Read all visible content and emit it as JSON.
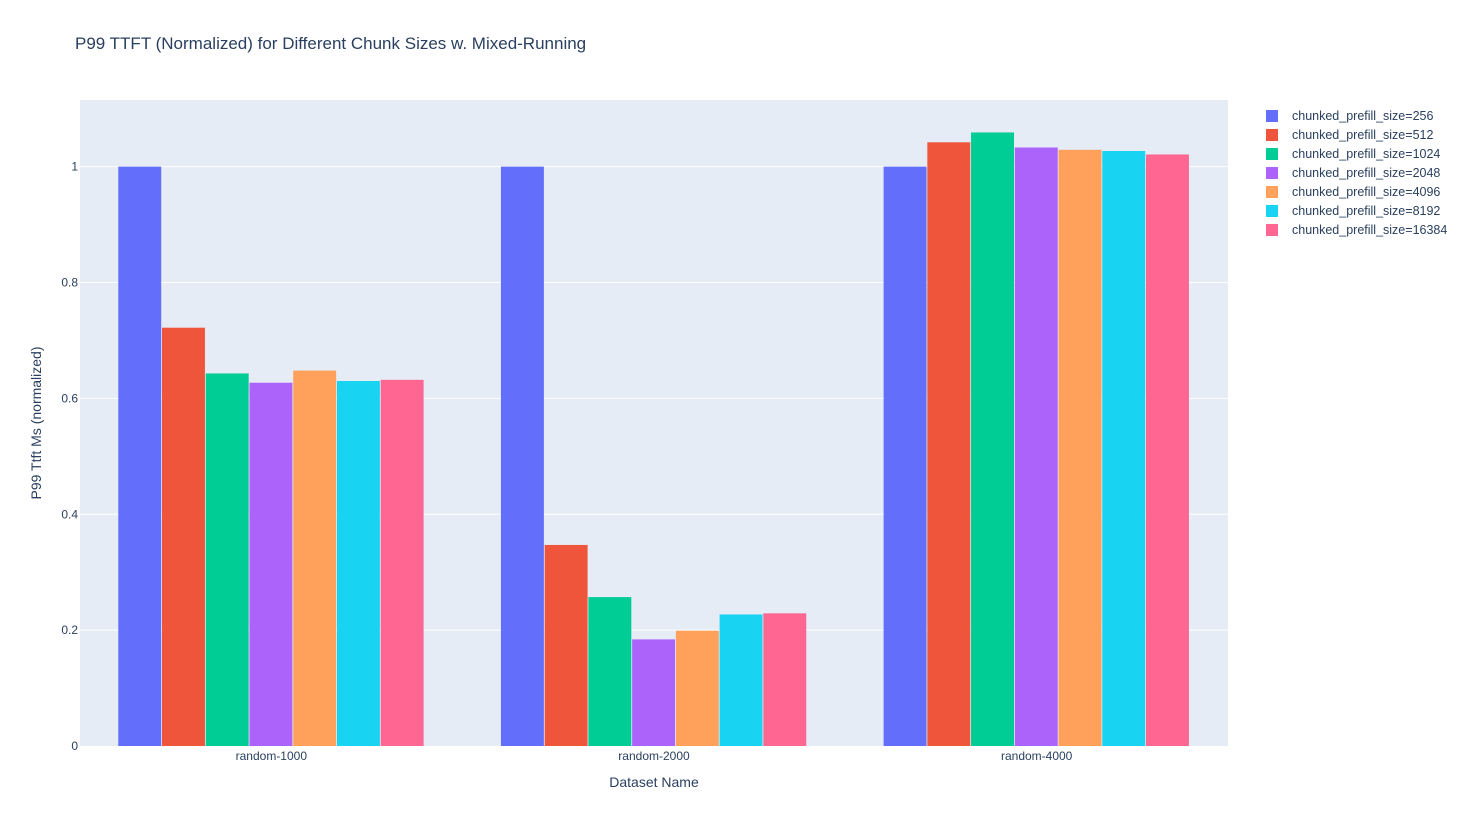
{
  "chart_data": {
    "type": "bar",
    "title": "P99 TTFT (Normalized) for Different Chunk Sizes w. Mixed-Running",
    "xlabel": "Dataset Name",
    "ylabel": "P99 Ttft Ms (normalized)",
    "ylim": [
      0,
      1.115
    ],
    "yticks": [
      0,
      0.2,
      0.4,
      0.6,
      0.8,
      1
    ],
    "ytick_labels": [
      "0",
      "0.2",
      "0.4",
      "0.6",
      "0.8",
      "1"
    ],
    "grid": true,
    "legend_position": "top-right",
    "categories": [
      "random-1000",
      "random-2000",
      "random-4000"
    ],
    "series": [
      {
        "name": "chunked_prefill_size=256",
        "color": "#636efa",
        "values": [
          1.0,
          1.0,
          1.0
        ]
      },
      {
        "name": "chunked_prefill_size=512",
        "color": "#ef553b",
        "values": [
          0.722,
          0.347,
          1.042
        ]
      },
      {
        "name": "chunked_prefill_size=1024",
        "color": "#00cc96",
        "values": [
          0.643,
          0.257,
          1.059
        ]
      },
      {
        "name": "chunked_prefill_size=2048",
        "color": "#ab63fa",
        "values": [
          0.627,
          0.184,
          1.033
        ]
      },
      {
        "name": "chunked_prefill_size=4096",
        "color": "#ffa15a",
        "values": [
          0.648,
          0.199,
          1.029
        ]
      },
      {
        "name": "chunked_prefill_size=8192",
        "color": "#19d3f3",
        "values": [
          0.63,
          0.227,
          1.027
        ]
      },
      {
        "name": "chunked_prefill_size=16384",
        "color": "#ff6692",
        "values": [
          0.632,
          0.229,
          1.021
        ]
      }
    ],
    "colors": {
      "plot_background": "#e5ecf6",
      "grid": "#ffffff",
      "text": "#2a3f5f"
    }
  }
}
